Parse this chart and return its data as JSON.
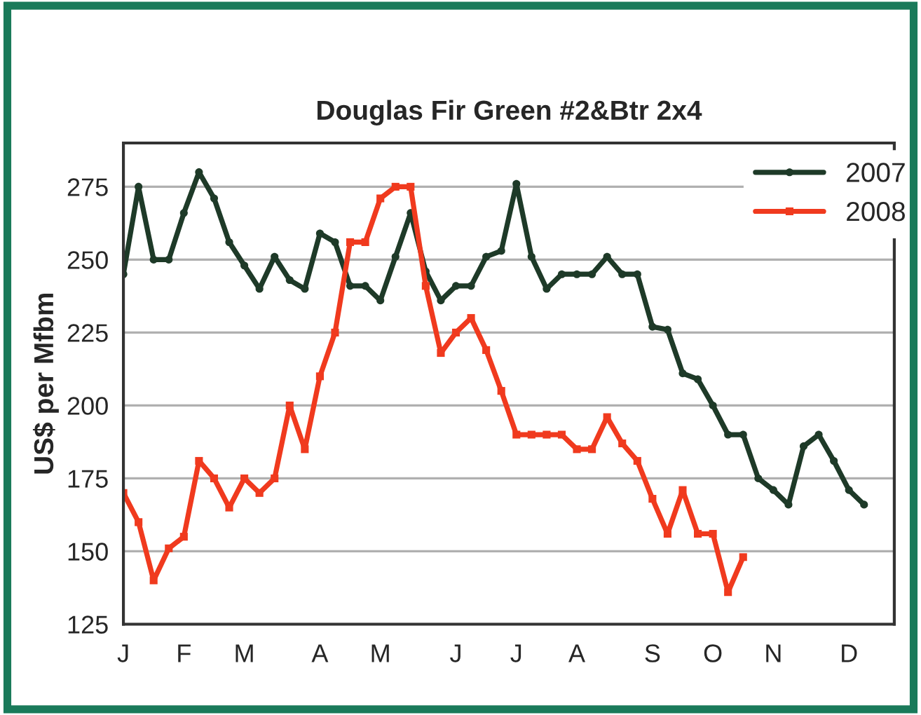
{
  "chart_data": {
    "type": "line",
    "title": "Douglas Fir Green #2&Btr 2x4",
    "ylabel": "US$ per Mfbm",
    "categories": [
      "J",
      null,
      null,
      null,
      "F",
      null,
      null,
      null,
      "M",
      null,
      null,
      null,
      null,
      "A",
      null,
      null,
      null,
      "M",
      null,
      null,
      null,
      null,
      "J",
      null,
      null,
      null,
      "J",
      null,
      null,
      null,
      "A",
      null,
      null,
      null,
      null,
      "S",
      null,
      null,
      null,
      "O",
      null,
      null,
      null,
      "N",
      null,
      null,
      null,
      null,
      "D",
      null
    ],
    "series": [
      {
        "name": "2007",
        "color": "#1e3a28",
        "marker": "circle",
        "values": [
          245,
          275,
          250,
          250,
          266,
          280,
          271,
          256,
          248,
          240,
          251,
          243,
          240,
          259,
          256,
          241,
          241,
          236,
          251,
          266,
          246,
          236,
          241,
          241,
          251,
          253,
          276,
          251,
          240,
          245,
          245,
          245,
          251,
          245,
          245,
          227,
          226,
          211,
          209,
          200,
          190,
          190,
          175,
          171,
          166,
          186,
          190,
          181,
          171,
          166
        ]
      },
      {
        "name": "2008",
        "color": "#f03a1e",
        "marker": "square",
        "values": [
          170,
          160,
          140,
          151,
          155,
          181,
          175,
          165,
          175,
          170,
          175,
          200,
          185,
          210,
          225,
          256,
          256,
          271,
          275,
          275,
          241,
          218,
          225,
          230,
          219,
          205,
          190,
          190,
          190,
          190,
          185,
          185,
          196,
          187,
          181,
          168,
          156,
          171,
          156,
          156,
          136,
          148,
          null,
          null,
          null,
          null,
          null,
          null,
          null,
          null
        ]
      }
    ],
    "ylim": [
      125,
      290
    ],
    "yticks": [
      125,
      150,
      175,
      200,
      225,
      250,
      275
    ],
    "grid": "y",
    "legend": "top right",
    "line_style": "solid"
  }
}
